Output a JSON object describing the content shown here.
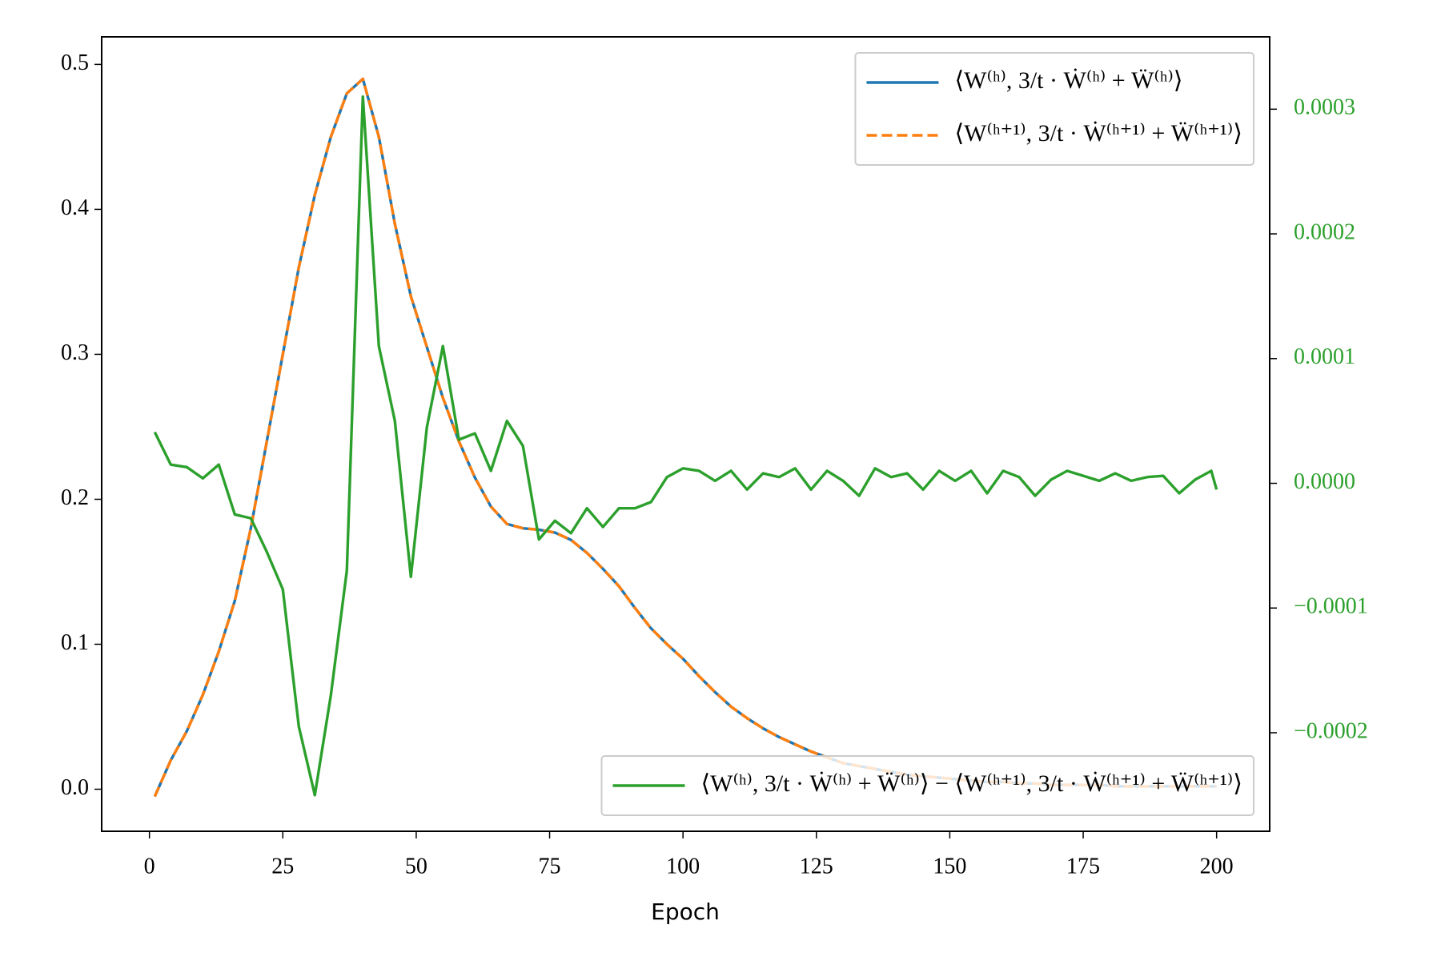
{
  "chart_data": {
    "type": "line",
    "x_label": "Epoch",
    "x": [
      1,
      4,
      7,
      10,
      13,
      16,
      19,
      22,
      25,
      28,
      31,
      34,
      37,
      40,
      43,
      46,
      49,
      52,
      55,
      58,
      61,
      64,
      67,
      70,
      73,
      76,
      79,
      82,
      85,
      88,
      91,
      94,
      97,
      100,
      103,
      106,
      109,
      112,
      115,
      118,
      121,
      124,
      127,
      130,
      133,
      136,
      139,
      142,
      145,
      148,
      151,
      154,
      157,
      160,
      163,
      166,
      169,
      172,
      175,
      178,
      181,
      184,
      187,
      190,
      193,
      196,
      199,
      200
    ],
    "xlim": [
      -8.95,
      209.95
    ],
    "xticks": [
      0,
      25,
      50,
      75,
      100,
      125,
      150,
      175,
      200
    ],
    "ylim": [
      -0.029,
      0.519
    ],
    "yticks": [
      {
        "value": 0,
        "label": "0.0"
      },
      0.1,
      0.2,
      0.3,
      0.4,
      0.5
    ],
    "y2lim": [
      -0.000279,
      0.000358
    ],
    "y2ticks": [
      {
        "value": -0.0002,
        "label": "−0.0002"
      },
      {
        "value": -0.0001,
        "label": "−0.0001"
      },
      {
        "value": 0,
        "label": "0.0000"
      },
      0.0001,
      0.0002,
      0.0003
    ],
    "y2_color": "#2ca02c",
    "grid": false,
    "legend_loc": "upper right",
    "legend2_loc": "lower right",
    "series": [
      {
        "name": "⟨W⁽ʰ⁾, 3/t · Ẇ⁽ʰ⁾ + Ẅ⁽ʰ⁾⟩",
        "color": "#1f77b4",
        "linestyle": "solid",
        "values": [
          -0.005,
          0.02,
          0.04,
          0.065,
          0.095,
          0.13,
          0.18,
          0.24,
          0.3,
          0.36,
          0.41,
          0.45,
          0.48,
          0.49,
          0.45,
          0.39,
          0.34,
          0.305,
          0.27,
          0.24,
          0.215,
          0.195,
          0.183,
          0.18,
          0.179,
          0.177,
          0.172,
          0.163,
          0.152,
          0.14,
          0.125,
          0.111,
          0.1,
          0.09,
          0.078,
          0.067,
          0.057,
          0.049,
          0.042,
          0.036,
          0.031,
          0.026,
          0.022,
          0.018,
          0.016,
          0.014,
          0.012,
          0.01,
          0.009,
          0.008,
          0.007,
          0.006,
          0.005,
          0.005,
          0.004,
          0.004,
          0.003,
          0.003,
          0.003,
          0.003,
          0.002,
          0.002,
          0.002,
          0.002,
          0.002,
          0.002,
          0.002,
          0.002
        ]
      },
      {
        "name": "⟨W⁽ʰ⁺¹⁾, 3/t · Ẇ⁽ʰ⁺¹⁾ + Ẅ⁽ʰ⁺¹⁾⟩",
        "color": "#ff7f0e",
        "linestyle": "dashed",
        "values": [
          -0.005,
          0.02,
          0.04,
          0.065,
          0.095,
          0.13,
          0.18,
          0.24,
          0.3,
          0.36,
          0.41,
          0.45,
          0.48,
          0.49,
          0.45,
          0.39,
          0.34,
          0.305,
          0.27,
          0.24,
          0.215,
          0.195,
          0.183,
          0.18,
          0.179,
          0.177,
          0.172,
          0.163,
          0.152,
          0.14,
          0.125,
          0.111,
          0.1,
          0.09,
          0.078,
          0.067,
          0.057,
          0.049,
          0.042,
          0.036,
          0.031,
          0.026,
          0.022,
          0.018,
          0.016,
          0.014,
          0.012,
          0.01,
          0.009,
          0.008,
          0.007,
          0.006,
          0.005,
          0.005,
          0.004,
          0.004,
          0.003,
          0.003,
          0.003,
          0.003,
          0.002,
          0.002,
          0.002,
          0.002,
          0.002,
          0.002,
          0.002,
          0.002
        ]
      },
      {
        "name": "⟨W⁽ʰ⁾, 3/t · Ẇ⁽ʰ⁾ + Ẅ⁽ʰ⁾⟩ − ⟨W⁽ʰ⁺¹⁾, 3/t · Ẇ⁽ʰ⁺¹⁾ + Ẅ⁽ʰ⁺¹⁾⟩",
        "color": "#2ca02c",
        "linestyle": "solid",
        "axis": "y2",
        "values": [
          4.1e-05,
          1.5e-05,
          1.3e-05,
          4e-06,
          1.5e-05,
          -2.5e-05,
          -2.8e-05,
          -5.5e-05,
          -8.5e-05,
          -0.000195,
          -0.00025,
          -0.00017,
          -7e-05,
          0.00031,
          0.00011,
          5e-05,
          -7.5e-05,
          4.5e-05,
          0.00011,
          3.5e-05,
          4e-05,
          1e-05,
          5e-05,
          3e-05,
          -4.5e-05,
          -3e-05,
          -4e-05,
          -2e-05,
          -3.5e-05,
          -2e-05,
          -2e-05,
          -1.5e-05,
          5e-06,
          1.2e-05,
          1e-05,
          2e-06,
          1e-05,
          -5e-06,
          8e-06,
          5e-06,
          1.2e-05,
          -5e-06,
          1e-05,
          2e-06,
          -1e-05,
          1.2e-05,
          5e-06,
          8e-06,
          -5e-06,
          1e-05,
          2e-06,
          1e-05,
          -8e-06,
          1e-05,
          5e-06,
          -1e-05,
          3e-06,
          1e-05,
          6e-06,
          2e-06,
          8e-06,
          2e-06,
          5e-06,
          6e-06,
          -8e-06,
          3e-06,
          1e-05,
          -5e-06
        ]
      }
    ]
  }
}
